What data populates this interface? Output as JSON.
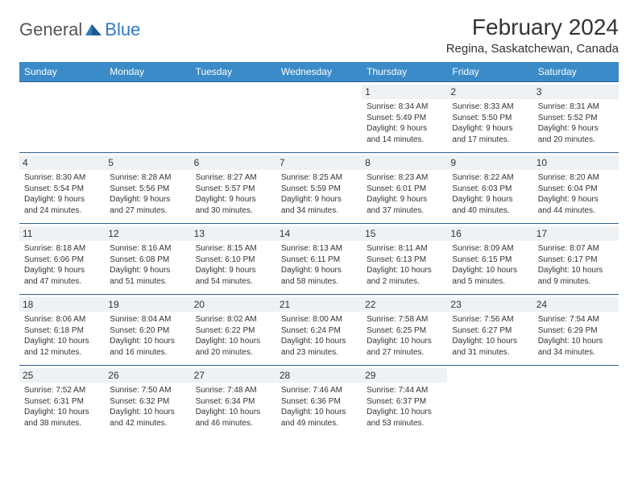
{
  "logo": {
    "part1": "General",
    "part2": "Blue"
  },
  "title": "February 2024",
  "location": "Regina, Saskatchewan, Canada",
  "colors": {
    "header_bg": "#3b8bc9",
    "header_text": "#ffffff",
    "row_border": "#2f5f8a",
    "daynum_bg": "#eef2f4",
    "body_text": "#333333",
    "logo_gray": "#555555",
    "logo_blue": "#2f7abf",
    "page_bg": "#ffffff"
  },
  "typography": {
    "title_fontsize": 28,
    "location_fontsize": 15,
    "dayname_fontsize": 12,
    "daynum_fontsize": 12,
    "info_fontsize": 10
  },
  "daynames": [
    "Sunday",
    "Monday",
    "Tuesday",
    "Wednesday",
    "Thursday",
    "Friday",
    "Saturday"
  ],
  "weeks": [
    [
      {
        "empty": true
      },
      {
        "empty": true
      },
      {
        "empty": true
      },
      {
        "empty": true
      },
      {
        "n": "1",
        "sr": "Sunrise: 8:34 AM",
        "ss": "Sunset: 5:49 PM",
        "dl": "Daylight: 9 hours and 14 minutes."
      },
      {
        "n": "2",
        "sr": "Sunrise: 8:33 AM",
        "ss": "Sunset: 5:50 PM",
        "dl": "Daylight: 9 hours and 17 minutes."
      },
      {
        "n": "3",
        "sr": "Sunrise: 8:31 AM",
        "ss": "Sunset: 5:52 PM",
        "dl": "Daylight: 9 hours and 20 minutes."
      }
    ],
    [
      {
        "n": "4",
        "sr": "Sunrise: 8:30 AM",
        "ss": "Sunset: 5:54 PM",
        "dl": "Daylight: 9 hours and 24 minutes."
      },
      {
        "n": "5",
        "sr": "Sunrise: 8:28 AM",
        "ss": "Sunset: 5:56 PM",
        "dl": "Daylight: 9 hours and 27 minutes."
      },
      {
        "n": "6",
        "sr": "Sunrise: 8:27 AM",
        "ss": "Sunset: 5:57 PM",
        "dl": "Daylight: 9 hours and 30 minutes."
      },
      {
        "n": "7",
        "sr": "Sunrise: 8:25 AM",
        "ss": "Sunset: 5:59 PM",
        "dl": "Daylight: 9 hours and 34 minutes."
      },
      {
        "n": "8",
        "sr": "Sunrise: 8:23 AM",
        "ss": "Sunset: 6:01 PM",
        "dl": "Daylight: 9 hours and 37 minutes."
      },
      {
        "n": "9",
        "sr": "Sunrise: 8:22 AM",
        "ss": "Sunset: 6:03 PM",
        "dl": "Daylight: 9 hours and 40 minutes."
      },
      {
        "n": "10",
        "sr": "Sunrise: 8:20 AM",
        "ss": "Sunset: 6:04 PM",
        "dl": "Daylight: 9 hours and 44 minutes."
      }
    ],
    [
      {
        "n": "11",
        "sr": "Sunrise: 8:18 AM",
        "ss": "Sunset: 6:06 PM",
        "dl": "Daylight: 9 hours and 47 minutes."
      },
      {
        "n": "12",
        "sr": "Sunrise: 8:16 AM",
        "ss": "Sunset: 6:08 PM",
        "dl": "Daylight: 9 hours and 51 minutes."
      },
      {
        "n": "13",
        "sr": "Sunrise: 8:15 AM",
        "ss": "Sunset: 6:10 PM",
        "dl": "Daylight: 9 hours and 54 minutes."
      },
      {
        "n": "14",
        "sr": "Sunrise: 8:13 AM",
        "ss": "Sunset: 6:11 PM",
        "dl": "Daylight: 9 hours and 58 minutes."
      },
      {
        "n": "15",
        "sr": "Sunrise: 8:11 AM",
        "ss": "Sunset: 6:13 PM",
        "dl": "Daylight: 10 hours and 2 minutes."
      },
      {
        "n": "16",
        "sr": "Sunrise: 8:09 AM",
        "ss": "Sunset: 6:15 PM",
        "dl": "Daylight: 10 hours and 5 minutes."
      },
      {
        "n": "17",
        "sr": "Sunrise: 8:07 AM",
        "ss": "Sunset: 6:17 PM",
        "dl": "Daylight: 10 hours and 9 minutes."
      }
    ],
    [
      {
        "n": "18",
        "sr": "Sunrise: 8:06 AM",
        "ss": "Sunset: 6:18 PM",
        "dl": "Daylight: 10 hours and 12 minutes."
      },
      {
        "n": "19",
        "sr": "Sunrise: 8:04 AM",
        "ss": "Sunset: 6:20 PM",
        "dl": "Daylight: 10 hours and 16 minutes."
      },
      {
        "n": "20",
        "sr": "Sunrise: 8:02 AM",
        "ss": "Sunset: 6:22 PM",
        "dl": "Daylight: 10 hours and 20 minutes."
      },
      {
        "n": "21",
        "sr": "Sunrise: 8:00 AM",
        "ss": "Sunset: 6:24 PM",
        "dl": "Daylight: 10 hours and 23 minutes."
      },
      {
        "n": "22",
        "sr": "Sunrise: 7:58 AM",
        "ss": "Sunset: 6:25 PM",
        "dl": "Daylight: 10 hours and 27 minutes."
      },
      {
        "n": "23",
        "sr": "Sunrise: 7:56 AM",
        "ss": "Sunset: 6:27 PM",
        "dl": "Daylight: 10 hours and 31 minutes."
      },
      {
        "n": "24",
        "sr": "Sunrise: 7:54 AM",
        "ss": "Sunset: 6:29 PM",
        "dl": "Daylight: 10 hours and 34 minutes."
      }
    ],
    [
      {
        "n": "25",
        "sr": "Sunrise: 7:52 AM",
        "ss": "Sunset: 6:31 PM",
        "dl": "Daylight: 10 hours and 38 minutes."
      },
      {
        "n": "26",
        "sr": "Sunrise: 7:50 AM",
        "ss": "Sunset: 6:32 PM",
        "dl": "Daylight: 10 hours and 42 minutes."
      },
      {
        "n": "27",
        "sr": "Sunrise: 7:48 AM",
        "ss": "Sunset: 6:34 PM",
        "dl": "Daylight: 10 hours and 46 minutes."
      },
      {
        "n": "28",
        "sr": "Sunrise: 7:46 AM",
        "ss": "Sunset: 6:36 PM",
        "dl": "Daylight: 10 hours and 49 minutes."
      },
      {
        "n": "29",
        "sr": "Sunrise: 7:44 AM",
        "ss": "Sunset: 6:37 PM",
        "dl": "Daylight: 10 hours and 53 minutes."
      },
      {
        "empty": true
      },
      {
        "empty": true
      }
    ]
  ]
}
